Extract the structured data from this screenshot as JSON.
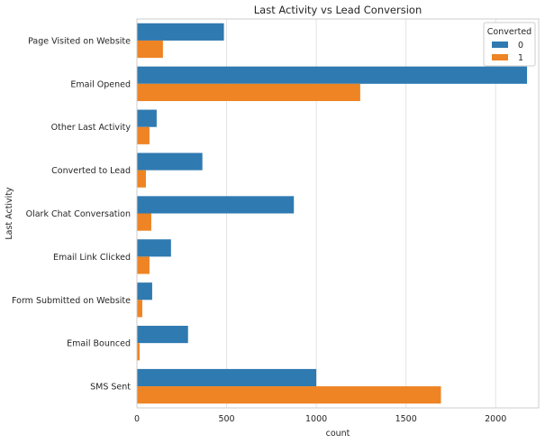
{
  "chart_data": {
    "type": "bar",
    "orientation": "horizontal",
    "title": "Last Activity vs Lead Conversion",
    "xlabel": "count",
    "ylabel": "Last Activity",
    "xlim": [
      0,
      2240
    ],
    "xticks": [
      0,
      500,
      1000,
      1500,
      2000
    ],
    "grid": true,
    "categories": [
      "Page Visited on Website",
      "Email Opened",
      "Other Last Activity",
      "Converted to Lead",
      "Olark Chat Conversation",
      "Email Link Clicked",
      "Form Submitted on Website",
      "Email Bounced",
      "SMS Sent"
    ],
    "series": [
      {
        "name": "0",
        "color": "#2f7ab0",
        "values": [
          485,
          2175,
          110,
          365,
          875,
          190,
          85,
          285,
          1000
        ]
      },
      {
        "name": "1",
        "color": "#ee8424",
        "values": [
          145,
          1245,
          70,
          50,
          80,
          70,
          30,
          15,
          1695
        ]
      }
    ],
    "legend": {
      "title": "Converted",
      "placement": "top-right"
    }
  }
}
